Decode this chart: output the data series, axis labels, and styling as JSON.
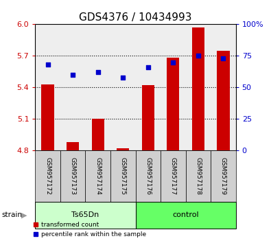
{
  "title": "GDS4376 / 10434993",
  "samples": [
    "GSM957172",
    "GSM957173",
    "GSM957174",
    "GSM957175",
    "GSM957176",
    "GSM957177",
    "GSM957178",
    "GSM957179"
  ],
  "red_values": [
    5.43,
    4.88,
    5.1,
    4.82,
    5.42,
    5.68,
    5.97,
    5.75
  ],
  "blue_values": [
    68,
    60,
    62,
    58,
    66,
    70,
    75,
    73
  ],
  "ylim_left": [
    4.8,
    6.0
  ],
  "ylim_right": [
    0,
    100
  ],
  "yticks_left": [
    4.8,
    5.1,
    5.4,
    5.7,
    6.0
  ],
  "yticks_right": [
    0,
    25,
    50,
    75,
    100
  ],
  "ytick_labels_right": [
    "0",
    "25",
    "50",
    "75",
    "100%"
  ],
  "bar_color": "#cc0000",
  "dot_color": "#0000cc",
  "bar_width": 0.5,
  "groups": [
    {
      "label": "Ts65Dn",
      "indices": [
        0,
        1,
        2,
        3
      ],
      "color": "#ccffcc"
    },
    {
      "label": "control",
      "indices": [
        4,
        5,
        6,
        7
      ],
      "color": "#66ff66"
    }
  ],
  "strain_label": "strain",
  "legend_red": "transformed count",
  "legend_blue": "percentile rank within the sample",
  "background_color": "#ffffff",
  "plot_bg_color": "#eeeeee",
  "grid_color": "#000000",
  "title_fontsize": 11,
  "axis_fontsize": 9,
  "tick_fontsize": 8,
  "sample_box_color": "#d0d0d0"
}
